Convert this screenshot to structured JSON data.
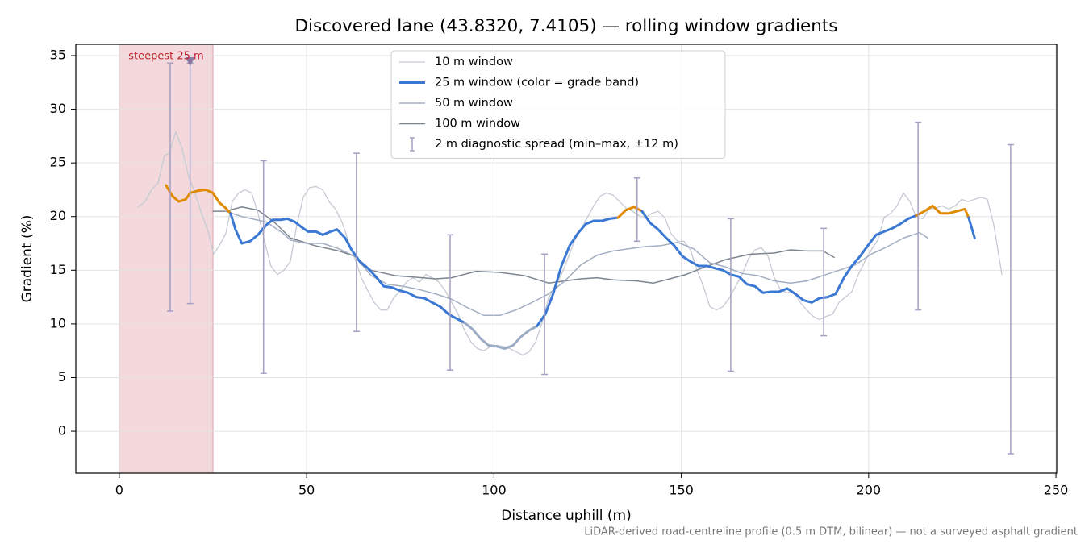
{
  "chart_data": {
    "type": "line",
    "title": "Discovered lane (43.8320, 7.4105) — rolling window gradients",
    "xlabel": "Distance uphill (m)",
    "ylabel": "Gradient (%)",
    "footnote": "LiDAR-derived road-centreline profile (0.5 m DTM, bilinear) — not a surveyed asphalt gradient",
    "xlim": [
      -11.6,
      250.2
    ],
    "ylim": [
      -3.9,
      36.05
    ],
    "xticks": [
      0,
      50,
      100,
      150,
      200,
      250
    ],
    "yticks": [
      0,
      5,
      10,
      15,
      20,
      25,
      30,
      35
    ],
    "grid": true,
    "legend": "upper center",
    "series": [
      {
        "name": "10 m window",
        "color": "#c5cad3",
        "width": 1.3,
        "x": [
          4.95,
          6.89,
          8.61,
          10.34,
          12.06,
          13.35,
          15.07,
          16.8,
          18.52,
          20.24,
          21.96,
          23.69,
          25.19,
          26.7,
          28.42,
          30.15,
          31.87,
          33.59,
          35.31,
          37.04,
          38.76,
          40.48,
          42.21,
          43.93,
          45.65,
          47.37,
          49.1,
          50.82,
          52.54,
          54.26,
          55.99,
          57.71,
          59.43,
          61.15,
          62.88,
          64.6,
          66.32,
          68.04,
          69.77,
          71.49,
          73.21,
          74.94,
          76.66,
          78.38,
          80.1,
          81.83,
          83.55,
          85.27,
          86.99,
          88.72,
          90.44,
          92.16,
          93.88,
          95.61,
          97.33,
          99.05,
          100.78,
          102.5,
          104.22,
          105.94,
          107.67,
          109.39,
          111.11,
          112.83,
          114.56,
          116.28,
          118.0,
          119.72,
          121.45,
          123.17,
          124.89,
          126.61,
          128.34,
          130.06,
          131.78,
          133.51,
          135.23,
          136.95,
          138.67,
          140.4,
          142.12,
          143.84,
          145.56,
          147.29,
          149.01,
          150.73,
          152.45,
          154.18,
          155.9,
          157.62,
          159.35,
          161.07,
          162.79,
          164.51,
          166.24,
          167.96,
          169.68,
          171.4,
          173.13,
          174.85,
          176.57,
          178.29,
          180.02,
          181.74,
          183.46,
          185.19,
          186.91,
          188.63,
          190.35,
          192.08,
          193.8,
          195.52,
          197.24,
          198.97,
          200.69,
          202.41,
          204.13,
          205.86,
          207.58,
          209.3,
          211.03,
          212.75,
          214.47,
          216.19,
          217.92,
          219.64,
          221.36,
          223.08,
          224.81,
          226.53,
          228.25,
          229.97,
          231.7,
          233.42,
          235.57
        ],
        "values": [
          20.9,
          21.4,
          22.5,
          23.1,
          25.7,
          25.9,
          27.9,
          26.3,
          23.7,
          22.2,
          20.3,
          18.6,
          16.5,
          17.3,
          18.4,
          21.4,
          22.2,
          22.5,
          22.2,
          20.3,
          17.7,
          15.4,
          14.6,
          15.0,
          15.8,
          19.2,
          21.8,
          22.7,
          22.8,
          22.5,
          21.4,
          20.7,
          19.5,
          17.7,
          16.1,
          14.3,
          13.1,
          12.0,
          11.3,
          11.3,
          12.4,
          13.1,
          13.9,
          14.3,
          13.9,
          14.6,
          14.3,
          13.9,
          13.1,
          12.0,
          10.9,
          9.4,
          8.3,
          7.7,
          7.5,
          7.9,
          8.0,
          7.9,
          7.7,
          7.4,
          7.1,
          7.4,
          8.3,
          10.1,
          12.4,
          13.5,
          14.6,
          16.1,
          17.7,
          18.8,
          19.9,
          21.0,
          21.9,
          22.2,
          22.0,
          21.4,
          20.8,
          20.5,
          20.1,
          19.9,
          20.3,
          20.5,
          19.9,
          18.4,
          17.7,
          17.7,
          16.9,
          15.0,
          13.5,
          11.6,
          11.3,
          11.6,
          12.4,
          13.5,
          14.6,
          16.1,
          16.9,
          17.1,
          16.3,
          14.3,
          13.1,
          12.9,
          13.0,
          12.0,
          11.3,
          10.7,
          10.4,
          10.7,
          10.9,
          12.0,
          12.5,
          13.0,
          14.6,
          15.8,
          16.9,
          17.8,
          19.9,
          20.3,
          21.0,
          22.2,
          21.4,
          19.9,
          19.8,
          20.7,
          20.8,
          21.0,
          20.7,
          21.0,
          21.6,
          21.4,
          21.6,
          21.8,
          21.6,
          19.2,
          14.6
        ]
      },
      {
        "name": "25 m window (color = grade band)",
        "color": "#3a78d4",
        "width": 3,
        "band_thresholds": [
          10,
          20
        ],
        "band_colors": [
          "#9aacc4",
          "#3a78d4",
          "#e08a00"
        ],
        "x": [
          12.5,
          14.2,
          15.9,
          17.7,
          18.9,
          20.9,
          23.0,
          25.0,
          26.7,
          28.4,
          29.7,
          31.0,
          32.7,
          34.9,
          37.0,
          39.2,
          40.9,
          43.1,
          44.8,
          46.9,
          48.7,
          50.4,
          52.5,
          54.3,
          56.4,
          58.1,
          60.3,
          62.0,
          64.2,
          66.3,
          68.5,
          70.6,
          72.8,
          74.9,
          77.1,
          79.2,
          81.4,
          83.5,
          85.7,
          87.9,
          90.0,
          92.2,
          94.3,
          96.5,
          98.6,
          100.8,
          102.9,
          105.1,
          107.2,
          109.4,
          111.5,
          113.7,
          115.8,
          118.0,
          120.2,
          122.3,
          124.5,
          126.6,
          128.8,
          130.9,
          133.1,
          135.2,
          137.4,
          139.5,
          141.7,
          143.8,
          146.0,
          148.1,
          150.3,
          152.5,
          154.6,
          156.8,
          158.9,
          161.1,
          163.2,
          165.4,
          167.5,
          169.7,
          171.8,
          174.0,
          176.1,
          178.3,
          180.4,
          182.6,
          184.8,
          186.9,
          189.1,
          191.2,
          193.4,
          195.5,
          197.7,
          199.8,
          202.0,
          204.1,
          206.3,
          208.4,
          210.6,
          212.7,
          214.9,
          217.1,
          219.2,
          221.4,
          223.5,
          225.7,
          226.7,
          228.3
        ],
        "values": [
          22.9,
          21.9,
          21.4,
          21.6,
          22.2,
          22.4,
          22.5,
          22.2,
          21.3,
          20.8,
          20.3,
          18.8,
          17.5,
          17.7,
          18.3,
          19.2,
          19.7,
          19.7,
          19.8,
          19.5,
          19.0,
          18.6,
          18.6,
          18.3,
          18.6,
          18.8,
          18.0,
          16.9,
          15.8,
          15.2,
          14.4,
          13.5,
          13.4,
          13.1,
          12.9,
          12.5,
          12.4,
          12.0,
          11.6,
          10.9,
          10.5,
          10.1,
          9.5,
          8.6,
          8.0,
          7.9,
          7.7,
          8.0,
          8.8,
          9.4,
          9.8,
          10.9,
          12.8,
          15.4,
          17.3,
          18.4,
          19.3,
          19.6,
          19.6,
          19.8,
          19.9,
          20.6,
          20.9,
          20.5,
          19.4,
          18.8,
          18.0,
          17.3,
          16.3,
          15.8,
          15.4,
          15.4,
          15.2,
          15.0,
          14.6,
          14.4,
          13.7,
          13.5,
          12.9,
          13.0,
          13.0,
          13.3,
          12.8,
          12.2,
          12.0,
          12.4,
          12.5,
          12.8,
          14.3,
          15.4,
          16.3,
          17.3,
          18.3,
          18.6,
          18.9,
          19.3,
          19.8,
          20.1,
          20.5,
          21.0,
          20.3,
          20.3,
          20.5,
          20.7,
          19.9,
          18.0
        ]
      },
      {
        "name": "50 m window",
        "color": "#a3aec2",
        "width": 1.5,
        "x": [
          28.4,
          32.7,
          39.2,
          43.5,
          45.7,
          50.0,
          54.3,
          58.6,
          62.9,
          67.2,
          71.5,
          75.8,
          80.1,
          84.4,
          88.7,
          93.0,
          97.3,
          101.6,
          105.9,
          110.2,
          114.6,
          118.9,
          123.2,
          127.5,
          131.8,
          136.1,
          140.4,
          144.7,
          149.0,
          153.3,
          157.6,
          161.9,
          166.2,
          170.5,
          174.8,
          179.2,
          183.5,
          187.8,
          192.1,
          196.4,
          200.7,
          205.0,
          209.3,
          213.6,
          215.8
        ],
        "values": [
          20.5,
          20.0,
          19.5,
          18.5,
          17.8,
          17.5,
          17.5,
          17.0,
          16.3,
          14.5,
          13.7,
          13.5,
          13.2,
          12.8,
          12.3,
          11.5,
          10.8,
          10.8,
          11.3,
          12.0,
          12.8,
          14.0,
          15.5,
          16.4,
          16.8,
          17.0,
          17.2,
          17.3,
          17.6,
          17.0,
          15.7,
          15.3,
          14.7,
          14.5,
          14.0,
          13.8,
          14.0,
          14.5,
          15.0,
          15.5,
          16.5,
          17.2,
          18.0,
          18.5,
          18.0
        ]
      },
      {
        "name": "100 m window",
        "color": "#7d8590",
        "width": 1.5,
        "x": [
          25.0,
          28.4,
          32.7,
          37.0,
          41.3,
          45.7,
          52.1,
          58.6,
          62.9,
          67.2,
          73.6,
          84.4,
          88.7,
          95.2,
          101.6,
          108.1,
          114.6,
          123.2,
          127.5,
          131.8,
          138.2,
          142.5,
          146.9,
          151.2,
          155.5,
          161.9,
          168.4,
          174.8,
          179.2,
          183.5,
          187.8,
          190.8
        ],
        "values": [
          20.5,
          20.5,
          20.9,
          20.6,
          19.5,
          18.0,
          17.3,
          16.8,
          16.3,
          15.0,
          14.5,
          14.2,
          14.3,
          14.9,
          14.8,
          14.5,
          13.8,
          14.2,
          14.3,
          14.1,
          14.0,
          13.8,
          14.2,
          14.6,
          15.2,
          16.0,
          16.5,
          16.6,
          16.9,
          16.8,
          16.8,
          16.2
        ]
      }
    ],
    "error_bars": {
      "name": "2 m diagnostic spread (min–max, ±12 m)",
      "color": "#a59fc4",
      "x": [
        13.6,
        18.9,
        38.5,
        63.3,
        88.3,
        113.5,
        138.2,
        163.2,
        188.0,
        213.2,
        237.9
      ],
      "min": [
        11.2,
        11.9,
        5.4,
        9.3,
        5.7,
        5.3,
        17.7,
        5.6,
        8.9,
        11.3,
        -2.1
      ],
      "max": [
        34.3,
        34.3,
        25.2,
        25.9,
        18.3,
        16.5,
        23.6,
        19.8,
        18.9,
        28.8,
        26.7
      ]
    },
    "steepest": {
      "label": "steepest 25 m",
      "x_range": [
        0,
        25
      ],
      "color": "#c0202a",
      "shade": "#f3d9dc",
      "marker": {
        "x": 18.9,
        "y": 34.4,
        "color": "#7a6a9a"
      }
    }
  }
}
